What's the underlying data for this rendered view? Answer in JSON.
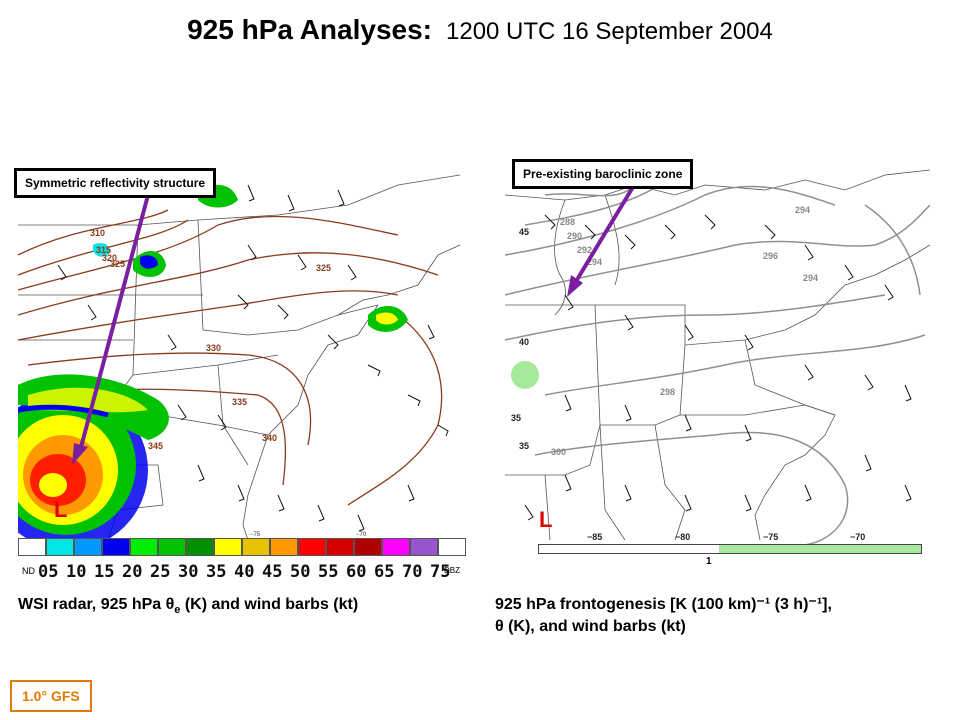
{
  "header": {
    "title_bold": "925 hPa Analyses:",
    "title_date": "1200 UTC 16 September 2004"
  },
  "left_panel": {
    "callout": "Symmetric reflectivity structure",
    "contour_labels": [
      "310",
      "315",
      "320",
      "325",
      "325",
      "330",
      "335",
      "340",
      "345"
    ],
    "low_symbol": "L",
    "lon_labels": [
      "−75",
      "−70"
    ],
    "caption_main": "WSI radar, 925 hPa θ",
    "caption_sub": "e",
    "caption_rest": " (K) and wind barbs (kt)",
    "colorbar": {
      "nd_label": "ND",
      "dbz_label": "DBZ",
      "colors": [
        "#ffffff",
        "#00e5e5",
        "#0099ff",
        "#0000ee",
        "#00ee00",
        "#00c200",
        "#008f00",
        "#ffff00",
        "#e6c200",
        "#ff9900",
        "#ff0000",
        "#d60000",
        "#b00000",
        "#ff00ff",
        "#9955cc",
        "#ffffff"
      ],
      "labels": [
        "05",
        "10",
        "15",
        "20",
        "25",
        "30",
        "35",
        "40",
        "45",
        "50",
        "55",
        "60",
        "65",
        "70",
        "75"
      ]
    }
  },
  "right_panel": {
    "callout": "Pre-existing baroclinic zone",
    "contour_labels": [
      "288",
      "290",
      "292",
      "294",
      "294",
      "296",
      "294",
      "298",
      "300"
    ],
    "lat_labels": [
      "45",
      "40",
      "35",
      "35"
    ],
    "lon_labels": [
      "−85",
      "−80",
      "−75",
      "−70"
    ],
    "low_symbol": "L",
    "scale_label": "1",
    "caption_line1": "925 hPa frontogenesis [K (100 km)⁻¹ (3 h)⁻¹],",
    "caption_line2": "θ (K), and wind barbs (kt)"
  },
  "badge": "1.0° GFS",
  "colors": {
    "arrow": "#7a1fa0",
    "theta_e_contour": "#8b3a1a",
    "theta_contour": "#909090",
    "low_symbol": "#e00000",
    "frontogenesis_fill": "#a6e89c",
    "badge": "#e07a00"
  }
}
